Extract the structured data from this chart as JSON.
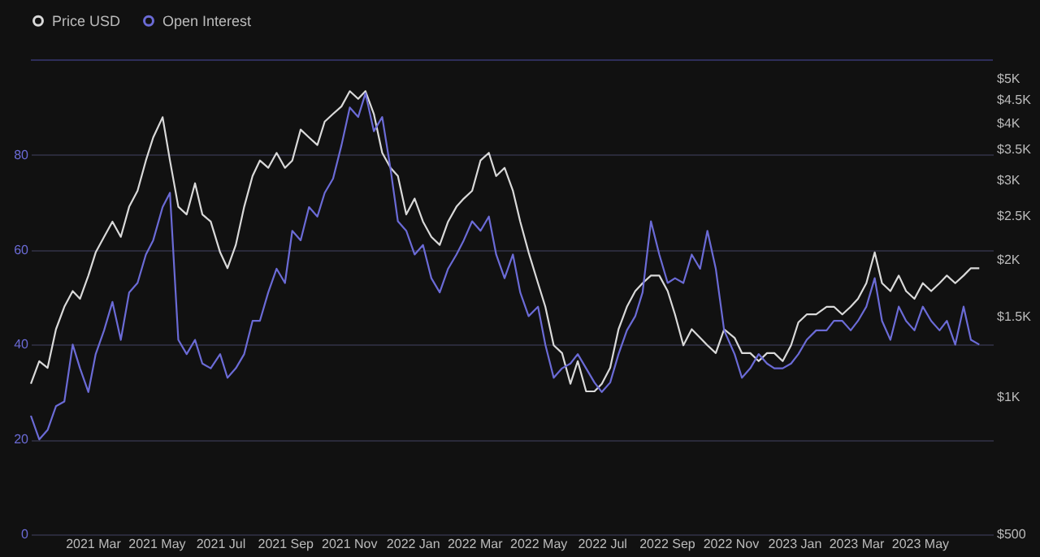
{
  "chart_data": {
    "type": "line",
    "x": [
      "2021-01-01",
      "2021-01-09",
      "2021-01-17",
      "2021-01-25",
      "2021-02-02",
      "2021-02-10",
      "2021-02-17",
      "2021-02-25",
      "2021-03-04",
      "2021-03-12",
      "2021-03-20",
      "2021-03-28",
      "2021-04-05",
      "2021-04-13",
      "2021-04-21",
      "2021-04-28",
      "2021-05-07",
      "2021-05-14",
      "2021-05-22",
      "2021-05-30",
      "2021-06-07",
      "2021-06-14",
      "2021-06-22",
      "2021-07-01",
      "2021-07-08",
      "2021-07-16",
      "2021-07-24",
      "2021-08-01",
      "2021-08-08",
      "2021-08-16",
      "2021-08-24",
      "2021-09-01",
      "2021-09-08",
      "2021-09-16",
      "2021-09-24",
      "2021-10-02",
      "2021-10-09",
      "2021-10-17",
      "2021-10-25",
      "2021-11-02",
      "2021-11-10",
      "2021-11-17",
      "2021-11-25",
      "2021-12-03",
      "2021-12-11",
      "2021-12-18",
      "2021-12-26",
      "2022-01-03",
      "2022-01-11",
      "2022-01-19",
      "2022-01-27",
      "2022-02-04",
      "2022-02-12",
      "2022-02-19",
      "2022-02-27",
      "2022-03-07",
      "2022-03-15",
      "2022-03-22",
      "2022-03-30",
      "2022-04-07",
      "2022-04-14",
      "2022-04-22",
      "2022-05-01",
      "2022-05-08",
      "2022-05-16",
      "2022-05-24",
      "2022-06-01",
      "2022-06-08",
      "2022-06-16",
      "2022-06-24",
      "2022-07-01",
      "2022-07-09",
      "2022-07-17",
      "2022-07-25",
      "2022-08-02",
      "2022-08-09",
      "2022-08-17",
      "2022-08-25",
      "2022-09-02",
      "2022-09-09",
      "2022-09-17",
      "2022-09-25",
      "2022-10-03",
      "2022-10-10",
      "2022-10-18",
      "2022-10-26",
      "2022-11-05",
      "2022-11-12",
      "2022-11-20",
      "2022-11-28",
      "2022-12-06",
      "2022-12-13",
      "2022-12-21",
      "2022-12-29",
      "2023-01-05",
      "2023-01-13",
      "2023-01-22",
      "2023-02-01",
      "2023-02-08",
      "2023-02-16",
      "2023-02-24",
      "2023-03-03",
      "2023-03-11",
      "2023-03-19",
      "2023-03-26",
      "2023-04-03",
      "2023-04-11",
      "2023-04-18",
      "2023-04-26",
      "2023-05-04",
      "2023-05-12",
      "2023-05-20",
      "2023-05-27",
      "2023-06-04",
      "2023-06-12",
      "2023-06-19",
      "2023-06-27"
    ],
    "series": [
      {
        "name": "Price USD",
        "color": "#d9d9d9",
        "axis": "y2",
        "values": [
          1070,
          1200,
          1160,
          1410,
          1580,
          1710,
          1645,
          1850,
          2080,
          2250,
          2430,
          2250,
          2620,
          2840,
          3310,
          3720,
          4120,
          3310,
          2620,
          2520,
          2950,
          2520,
          2430,
          2080,
          1920,
          2160,
          2620,
          3060,
          3310,
          3190,
          3440,
          3190,
          3310,
          3870,
          3720,
          3580,
          4030,
          4190,
          4350,
          4700,
          4520,
          4700,
          4190,
          3440,
          3190,
          3060,
          2520,
          2730,
          2430,
          2250,
          2160,
          2430,
          2620,
          2730,
          2840,
          3310,
          3440,
          3060,
          3190,
          2840,
          2430,
          2080,
          1780,
          1580,
          1300,
          1250,
          1070,
          1200,
          1030,
          1030,
          1070,
          1160,
          1410,
          1580,
          1710,
          1780,
          1850,
          1850,
          1710,
          1520,
          1300,
          1410,
          1350,
          1300,
          1250,
          1410,
          1350,
          1250,
          1250,
          1200,
          1250,
          1250,
          1200,
          1300,
          1460,
          1520,
          1520,
          1580,
          1580,
          1520,
          1580,
          1645,
          1780,
          2080,
          1780,
          1710,
          1850,
          1710,
          1645,
          1780,
          1710,
          1780,
          1850,
          1780,
          1850,
          1920,
          1920
        ]
      },
      {
        "name": "Open Interest",
        "color": "#6b6bd6",
        "values": [
          25,
          20,
          22,
          27,
          28,
          40,
          35,
          30,
          38,
          43,
          49,
          41,
          51,
          53,
          59,
          62,
          69,
          72,
          41,
          38,
          41,
          36,
          35,
          38,
          33,
          35,
          38,
          45,
          45,
          51,
          56,
          53,
          64,
          62,
          69,
          67,
          72,
          75,
          82,
          90,
          88,
          93,
          85,
          88,
          77,
          66,
          64,
          59,
          61,
          54,
          51,
          56,
          59,
          62,
          66,
          64,
          67,
          59,
          54,
          59,
          51,
          46,
          48,
          40,
          33,
          35,
          36,
          38,
          35,
          32,
          30,
          32,
          38,
          43,
          46,
          51,
          66,
          59,
          53,
          54,
          53,
          59,
          56,
          64,
          56,
          43,
          38,
          33,
          35,
          38,
          36,
          35,
          35,
          36,
          38,
          41,
          43,
          43,
          45,
          45,
          43,
          45,
          48,
          54,
          45,
          41,
          48,
          45,
          43,
          48,
          45,
          43,
          45,
          40,
          48,
          41,
          40
        ]
      }
    ],
    "ylim": [
      0,
      100
    ],
    "yticks": [
      0,
      20,
      40,
      60,
      80
    ],
    "y2lim": [
      500,
      5500
    ],
    "y2ticks": [
      {
        "value": 500,
        "label": "$500"
      },
      {
        "value": 1000,
        "label": "$1K"
      },
      {
        "value": 1500,
        "label": "$1.5K"
      },
      {
        "value": 2000,
        "label": "$2K"
      },
      {
        "value": 2500,
        "label": "$2.5K"
      },
      {
        "value": 3000,
        "label": "$3K"
      },
      {
        "value": 3500,
        "label": "$3.5K"
      },
      {
        "value": 4000,
        "label": "$4K"
      },
      {
        "value": 4500,
        "label": "$4.5K"
      },
      {
        "value": 5000,
        "label": "$5K"
      }
    ],
    "log": "y2",
    "xlim": [
      "2021-01-01",
      "2023-07-10"
    ],
    "xticks": [
      {
        "value": "2021-03-01",
        "label": "2021 Mar"
      },
      {
        "value": "2021-05-01",
        "label": "2021 May"
      },
      {
        "value": "2021-07-01",
        "label": "2021 Jul"
      },
      {
        "value": "2021-09-01",
        "label": "2021 Sep"
      },
      {
        "value": "2021-11-01",
        "label": "2021 Nov"
      },
      {
        "value": "2022-01-01",
        "label": "2022 Jan"
      },
      {
        "value": "2022-03-01",
        "label": "2022 Mar"
      },
      {
        "value": "2022-05-01",
        "label": "2022 May"
      },
      {
        "value": "2022-07-01",
        "label": "2022 Jul"
      },
      {
        "value": "2022-09-01",
        "label": "2022 Sep"
      },
      {
        "value": "2022-11-01",
        "label": "2022 Nov"
      },
      {
        "value": "2023-01-01",
        "label": "2023 Jan"
      },
      {
        "value": "2023-03-01",
        "label": "2023 Mar"
      },
      {
        "value": "2023-05-01",
        "label": "2023 May"
      }
    ],
    "grid": "y",
    "legend": "top",
    "line_style": "solid",
    "marker": "none"
  }
}
